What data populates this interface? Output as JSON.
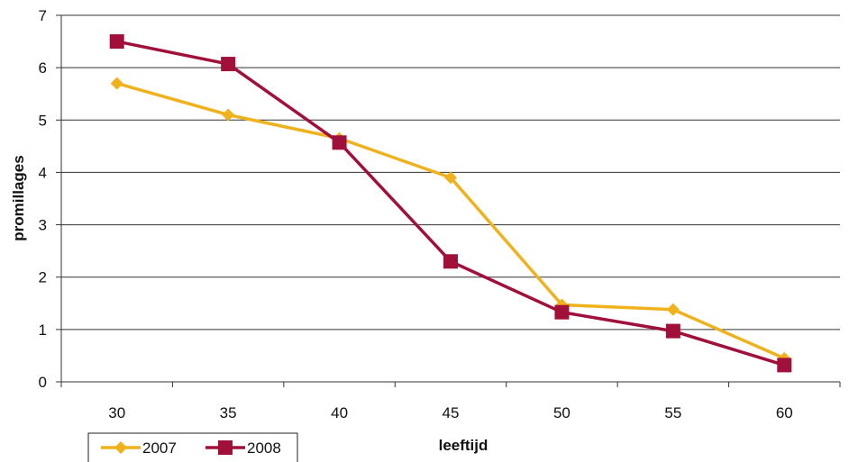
{
  "chart_data": {
    "type": "line",
    "title": "",
    "xlabel": "leeftijd",
    "ylabel": "promillages",
    "categories": [
      "30",
      "35",
      "40",
      "45",
      "50",
      "55",
      "60"
    ],
    "ylim": [
      0,
      7
    ],
    "yticks": [
      0,
      1,
      2,
      3,
      4,
      5,
      6,
      7
    ],
    "grid": "horizontal",
    "legend_position": "bottom-left",
    "series": [
      {
        "name": "2007",
        "color": "#F0B21C",
        "marker": "diamond",
        "values": [
          5.7,
          5.1,
          4.65,
          3.9,
          1.47,
          1.38,
          0.45
        ]
      },
      {
        "name": "2008",
        "color": "#A0103A",
        "marker": "square",
        "values": [
          6.5,
          6.07,
          4.57,
          2.3,
          1.33,
          0.97,
          0.32
        ]
      }
    ]
  }
}
